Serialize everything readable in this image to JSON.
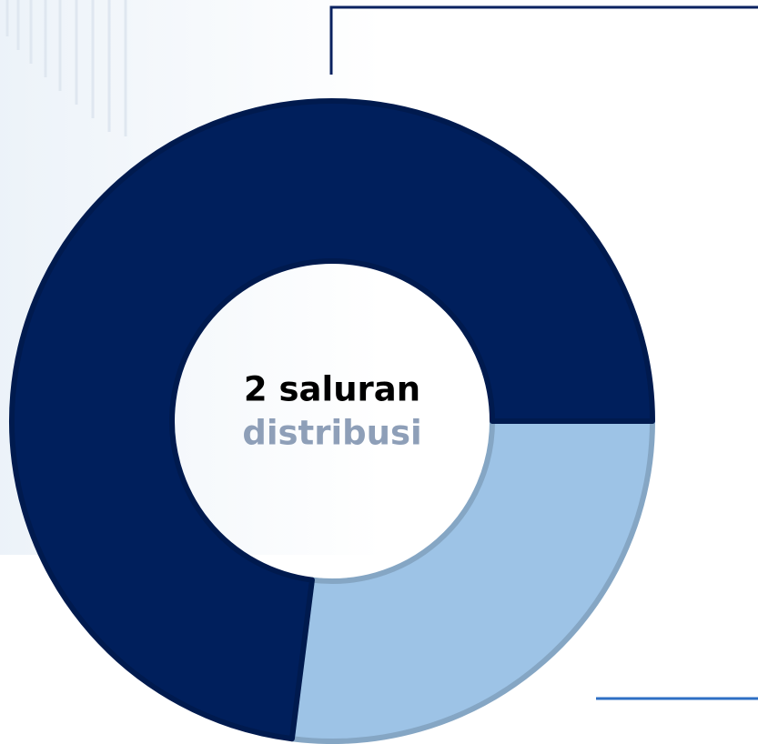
{
  "chart_data": {
    "type": "donut",
    "values": [
      27,
      73
    ],
    "colors": [
      "#9dc3e6",
      "#001f5c"
    ],
    "annotations": [
      "2 saluran",
      "distribusi"
    ]
  }
}
